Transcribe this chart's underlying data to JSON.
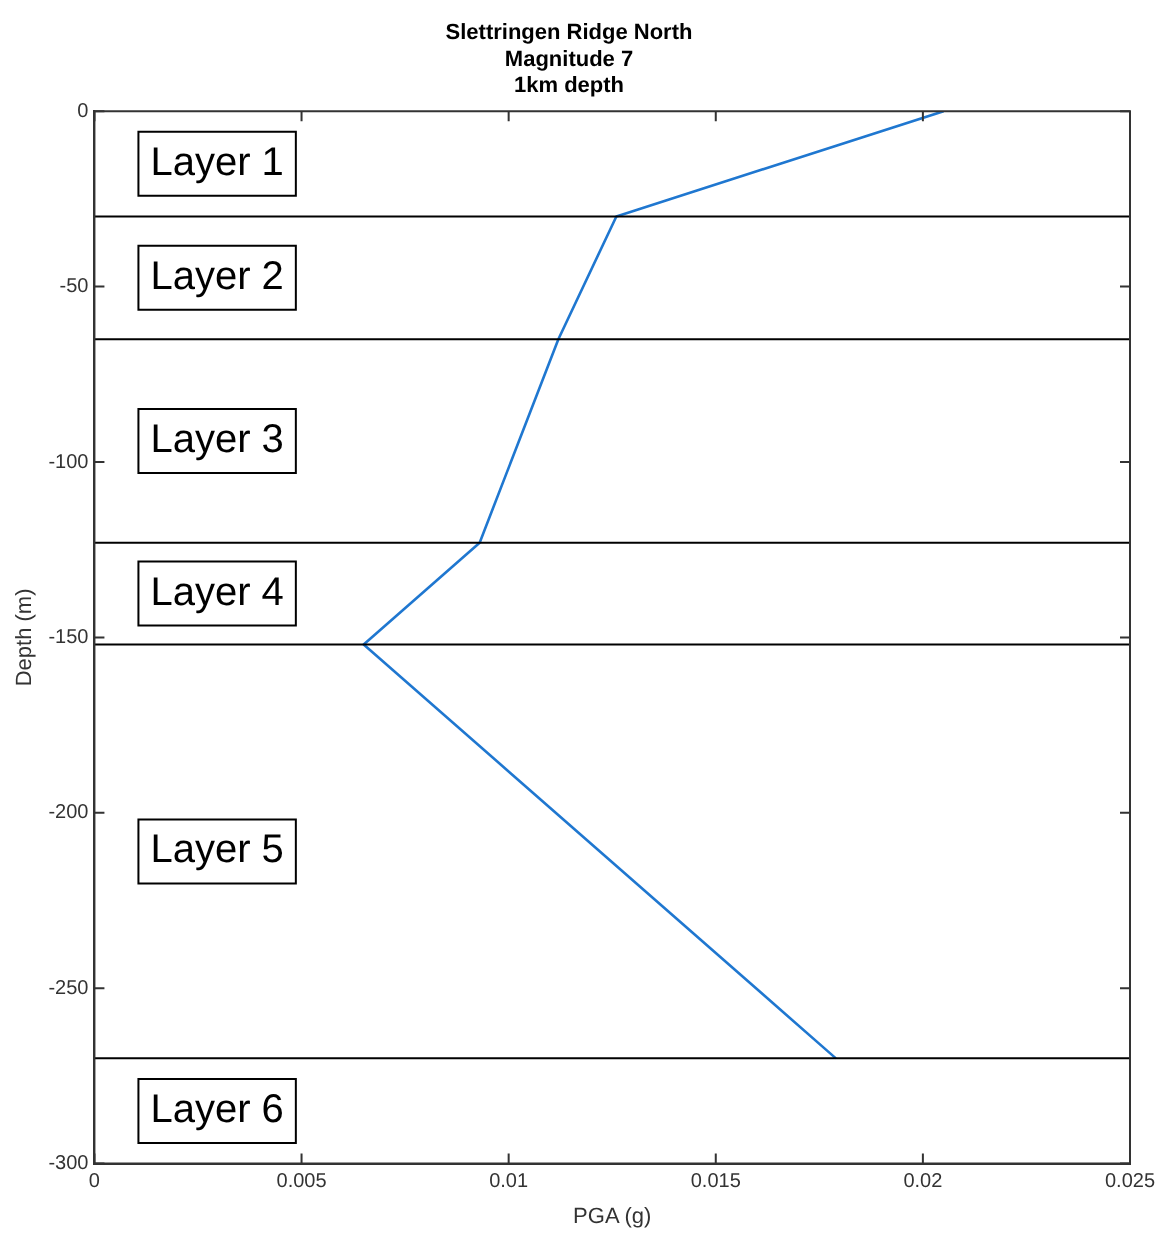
{
  "chart_data": {
    "type": "line",
    "title": "Slettringen Ridge North\nMagnitude 7\n1km depth",
    "xlabel": "PGA (g)",
    "ylabel": "Depth (m)",
    "x": [
      0.0205,
      0.0126,
      0.0112,
      0.0093,
      0.0065,
      0.0179
    ],
    "series": [
      {
        "color": "#1f77d0",
        "values": [
          0,
          -30,
          -65,
          -123,
          -152,
          -270
        ]
      }
    ],
    "xlim": [
      0,
      0.025
    ],
    "xticks": [
      0,
      0.005,
      0.01,
      0.015,
      0.02,
      0.025
    ],
    "ylim": [
      -300,
      0
    ],
    "yticks": [
      -300,
      -250,
      -200,
      -150,
      -100,
      -50,
      0
    ],
    "grid": false,
    "legend": false,
    "marker": "none",
    "line_style": "solid",
    "ref_lines": [
      {
        "axis": "y",
        "value": -30,
        "color": "#000000"
      },
      {
        "axis": "y",
        "value": -65,
        "color": "#000000"
      },
      {
        "axis": "y",
        "value": -123,
        "color": "#000000"
      },
      {
        "axis": "y",
        "value": -152,
        "color": "#000000"
      },
      {
        "axis": "y",
        "value": -270,
        "color": "#000000"
      }
    ],
    "annotations": [
      "Layer 1",
      "Layer 2",
      "Layer 3",
      "Layer 4",
      "Layer 5",
      "Layer 6"
    ]
  }
}
